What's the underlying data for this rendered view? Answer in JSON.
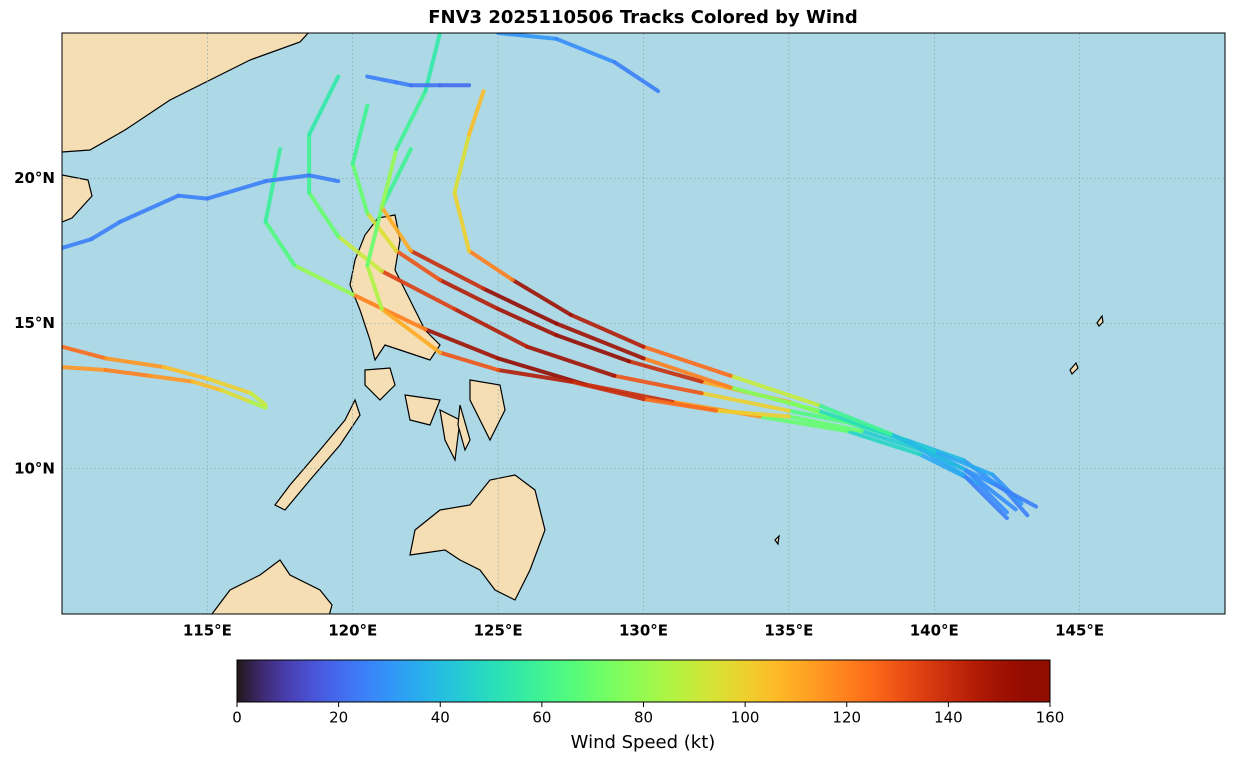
{
  "title": "FNV3 2025110506 Tracks Colored by Wind",
  "map": {
    "xlim": [
      110,
      150
    ],
    "ylim": [
      5,
      25
    ],
    "xticks": [
      {
        "value": 115,
        "label": "115°E"
      },
      {
        "value": 120,
        "label": "120°E"
      },
      {
        "value": 125,
        "label": "125°E"
      },
      {
        "value": 130,
        "label": "130°E"
      },
      {
        "value": 135,
        "label": "135°E"
      },
      {
        "value": 140,
        "label": "140°E"
      },
      {
        "value": 145,
        "label": "145°E"
      }
    ],
    "yticks": [
      {
        "value": 10,
        "label": "10°N"
      },
      {
        "value": 15,
        "label": "15°N"
      },
      {
        "value": 20,
        "label": "20°N"
      }
    ],
    "grid": true,
    "tracks": [
      {
        "lon": [
          143.2,
          142.5,
          141,
          139,
          137,
          135,
          132,
          129.5,
          127,
          125,
          123,
          121.5,
          120.5,
          120,
          120.5
        ],
        "lat": [
          8.4,
          9.2,
          10.3,
          11,
          11.6,
          12.3,
          13,
          13.7,
          14.6,
          15.5,
          16.5,
          17.5,
          18.8,
          20.5,
          22.5
        ],
        "wind": [
          25,
          30,
          40,
          55,
          75,
          110,
          140,
          155,
          150,
          145,
          130,
          95,
          70,
          60,
          55
        ]
      },
      {
        "lon": [
          143,
          142,
          140,
          137.5,
          135,
          132,
          129,
          126,
          123.5,
          121,
          119.5,
          118.5,
          118.5,
          119.5
        ],
        "lat": [
          8.8,
          9.8,
          10.6,
          11.5,
          12,
          12.6,
          13.2,
          14.2,
          15.5,
          16.8,
          18,
          19.5,
          21.5,
          23.5
        ],
        "wind": [
          30,
          35,
          45,
          65,
          100,
          130,
          150,
          145,
          135,
          90,
          70,
          60,
          55,
          50
        ]
      },
      {
        "lon": [
          142.5,
          141.5,
          139.5,
          137,
          134,
          131,
          128,
          125,
          122.5,
          120,
          118,
          117,
          117.5
        ],
        "lat": [
          8.5,
          9.5,
          10.5,
          11.3,
          11.8,
          12.3,
          12.9,
          13.8,
          14.8,
          16,
          17,
          18.5,
          21
        ],
        "wind": [
          28,
          35,
          48,
          70,
          115,
          140,
          155,
          150,
          120,
          80,
          65,
          58,
          55
        ]
      },
      {
        "lon": [
          143.5,
          142,
          140,
          137.5,
          135,
          132.5,
          130,
          127.5,
          125,
          123,
          121,
          120.5,
          121,
          122
        ],
        "lat": [
          8.7,
          9.5,
          10.5,
          11.3,
          11.8,
          12,
          12.4,
          13,
          13.4,
          14,
          15.5,
          17,
          19,
          21
        ],
        "wind": [
          25,
          30,
          45,
          70,
          100,
          125,
          140,
          145,
          130,
          110,
          85,
          70,
          60,
          50
        ]
      },
      {
        "lon": [
          142.5,
          141,
          139,
          136,
          133,
          130,
          127,
          124.5,
          122,
          121,
          121.5,
          122.5,
          123
        ],
        "lat": [
          8.3,
          9.8,
          11,
          12,
          12.8,
          13.8,
          15,
          16.2,
          17.5,
          19,
          21,
          23,
          25
        ],
        "wind": [
          25,
          35,
          50,
          75,
          120,
          150,
          155,
          140,
          110,
          80,
          60,
          55,
          50
        ]
      },
      {
        "lon": [
          142.8,
          141,
          138.5,
          136,
          133,
          130,
          127.5,
          125.5,
          124,
          123.5,
          124,
          124.5
        ],
        "lat": [
          8.6,
          10,
          11.2,
          12.2,
          13.2,
          14.2,
          15.3,
          16.5,
          17.5,
          19.5,
          21.5,
          23
        ],
        "wind": [
          28,
          40,
          60,
          90,
          125,
          145,
          150,
          120,
          100,
          95,
          105,
          120
        ]
      },
      {
        "lon": [
          110,
          111.5,
          113,
          114.5,
          115.5,
          116.5,
          117
        ],
        "lat": [
          13.5,
          13.4,
          13.2,
          13,
          12.7,
          12.3,
          12.1
        ],
        "wind": [
          115,
          120,
          115,
          105,
          95,
          85,
          80
        ]
      },
      {
        "lon": [
          110,
          111.5,
          113.5,
          115,
          116.5,
          117
        ],
        "lat": [
          14.2,
          13.8,
          13.5,
          13.1,
          12.6,
          12.2
        ],
        "wind": [
          125,
          115,
          105,
          100,
          90,
          80
        ]
      },
      {
        "lon": [
          110,
          111,
          112,
          114,
          115,
          117,
          118.5,
          119.5
        ],
        "lat": [
          17.6,
          17.9,
          18.5,
          19.4,
          19.3,
          19.9,
          20.1,
          19.9
        ],
        "wind": [
          25,
          25,
          25,
          25,
          25,
          25,
          25,
          25
        ]
      },
      {
        "lon": [
          125,
          127,
          129,
          130.5
        ],
        "lat": [
          25,
          24.8,
          24,
          23
        ],
        "wind": [
          30,
          28,
          25,
          22
        ]
      },
      {
        "lon": [
          120.5,
          121.5,
          122,
          123,
          124
        ],
        "lat": [
          23.5,
          23.3,
          23.2,
          23.2,
          23.2
        ],
        "wind": [
          25,
          25,
          22,
          20,
          20
        ]
      }
    ]
  },
  "colorbar": {
    "label": "Wind Speed (kt)",
    "lim": [
      0,
      160
    ],
    "ticks": [
      0,
      20,
      40,
      60,
      80,
      100,
      120,
      140,
      160
    ],
    "colormap": "turbo"
  }
}
